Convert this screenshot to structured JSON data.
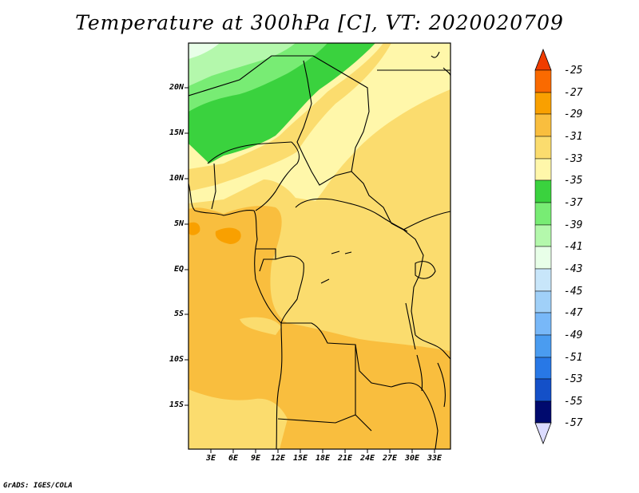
{
  "title": "Temperature at 300hPa [C], VT: 2020020709",
  "credit": "GrADS: IGES/COLA",
  "map": {
    "lon_labels": [
      "3E",
      "6E",
      "9E",
      "12E",
      "15E",
      "18E",
      "21E",
      "24E",
      "27E",
      "30E",
      "33E"
    ],
    "lat_labels": [
      "20N",
      "15N",
      "10N",
      "5N",
      "EQ",
      "5S",
      "10S",
      "15S"
    ]
  },
  "colorbar": {
    "labels": [
      "-25",
      "-27",
      "-29",
      "-31",
      "-33",
      "-35",
      "-37",
      "-39",
      "-41",
      "-43",
      "-45",
      "-47",
      "-49",
      "-51",
      "-53",
      "-55",
      "-57"
    ],
    "colors": [
      "#f03c00",
      "#fa6a00",
      "#f9a000",
      "#f9be3e",
      "#fbdc6e",
      "#fff7aa",
      "#3ad23e",
      "#78ec74",
      "#b4f8ac",
      "#e8ffe8",
      "#c8e6fa",
      "#a0d0f8",
      "#78b8f8",
      "#4a9cf0",
      "#2878e6",
      "#1450c8",
      "#0a2c9c",
      "#000a6e",
      "#dcdcff"
    ]
  }
}
